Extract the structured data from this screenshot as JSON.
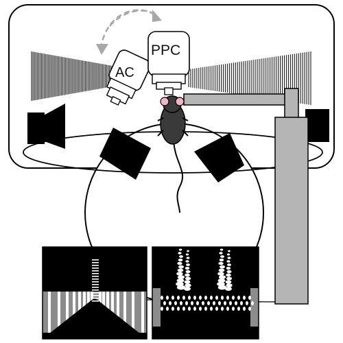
{
  "labels": {
    "ac": "AC",
    "ppc": "PPC"
  },
  "colors": {
    "background": "#ffffff",
    "stroke": "#000000",
    "screen": "#000000",
    "stand": "#b5b5b5",
    "mouse": "#3a3a3a",
    "mouse_ear": "#f2b3c4",
    "arrow": "#a8a8a8",
    "grating_gray": "#8c8c8c",
    "dots": "#ffffff"
  },
  "icons": {
    "speaker": "speaker-icon",
    "mouse": "mouse-icon",
    "arrow": "swap-arrows-icon"
  }
}
